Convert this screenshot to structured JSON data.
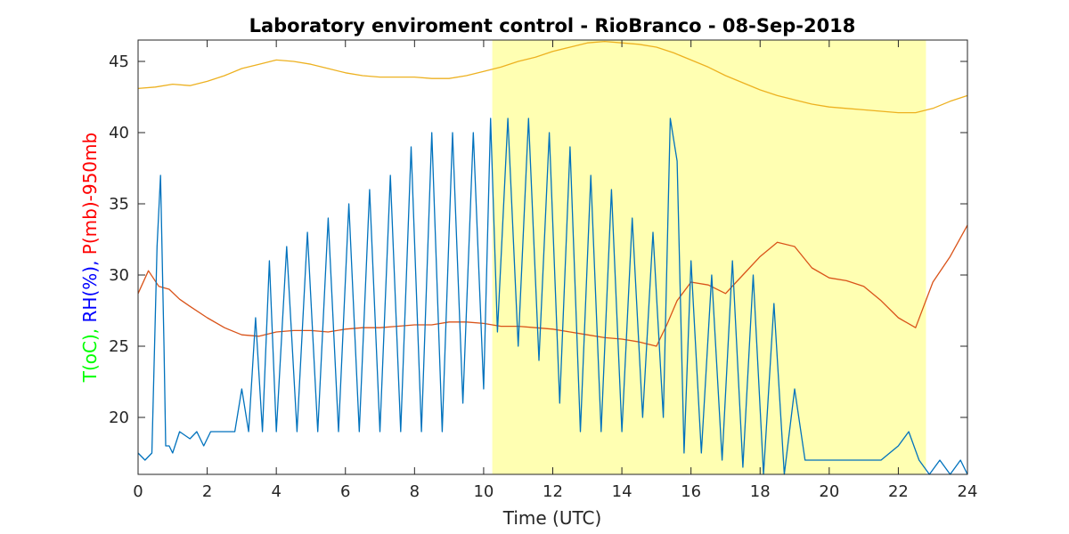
{
  "chart_data": {
    "type": "line",
    "title": "Laboratory enviroment control - RioBranco - 08-Sep-2018",
    "xlabel": "Time (UTC)",
    "ylabel_parts": [
      {
        "text": "T(oC), ",
        "color": "#00ff00"
      },
      {
        "text": "RH(%), ",
        "color": "#0000ff"
      },
      {
        "text": "P(mb)-950mb",
        "color": "#ff0000"
      }
    ],
    "xlim": [
      0,
      24
    ],
    "ylim": [
      16,
      46.5
    ],
    "x_ticks": [
      0,
      2,
      4,
      6,
      8,
      10,
      12,
      14,
      16,
      18,
      20,
      22,
      24
    ],
    "y_ticks": [
      20,
      25,
      30,
      35,
      40,
      45
    ],
    "shaded_region": {
      "x_start": 10.25,
      "x_end": 22.8,
      "color": "#ffffb2"
    },
    "series": [
      {
        "color": "#edb120",
        "x": [
          0,
          0.5,
          1,
          1.5,
          2,
          2.5,
          3,
          3.5,
          4,
          4.5,
          5,
          5.5,
          6,
          6.5,
          7,
          7.5,
          8,
          8.5,
          9,
          9.5,
          10,
          10.5,
          11,
          11.5,
          12,
          12.5,
          13,
          13.5,
          14,
          14.5,
          15,
          15.5,
          16,
          16.5,
          17,
          17.5,
          18,
          18.5,
          19,
          19.5,
          20,
          20.5,
          21,
          21.5,
          22,
          22.5,
          23,
          23.5,
          24
        ],
        "values": [
          43.1,
          43.2,
          43.4,
          43.3,
          43.6,
          44.0,
          44.5,
          44.8,
          45.1,
          45.0,
          44.8,
          44.5,
          44.2,
          44.0,
          43.9,
          43.9,
          43.9,
          43.8,
          43.8,
          44.0,
          44.3,
          44.6,
          45.0,
          45.3,
          45.7,
          46.0,
          46.3,
          46.4,
          46.3,
          46.2,
          46.0,
          45.6,
          45.1,
          44.6,
          44.0,
          43.5,
          43.0,
          42.6,
          42.3,
          42.0,
          41.8,
          41.7,
          41.6,
          41.5,
          41.4,
          41.4,
          41.7,
          42.2,
          42.6
        ]
      },
      {
        "color": "#d95319",
        "x": [
          0,
          0.3,
          0.6,
          0.9,
          1.2,
          1.5,
          2,
          2.5,
          3,
          3.5,
          4,
          4.5,
          5,
          5.5,
          6,
          6.5,
          7,
          7.5,
          8,
          8.5,
          9,
          9.5,
          10,
          10.5,
          11,
          11.5,
          12,
          12.5,
          13,
          13.5,
          14,
          14.5,
          15,
          15.3,
          15.6,
          16,
          16.5,
          17,
          17.5,
          18,
          18.5,
          19,
          19.5,
          20,
          20.5,
          21,
          21.5,
          22,
          22.5,
          23,
          23.5,
          24
        ],
        "values": [
          28.7,
          30.3,
          29.2,
          29.0,
          28.3,
          27.8,
          27.0,
          26.3,
          25.8,
          25.7,
          26.0,
          26.1,
          26.1,
          26.0,
          26.2,
          26.3,
          26.3,
          26.4,
          26.5,
          26.5,
          26.7,
          26.7,
          26.6,
          26.4,
          26.4,
          26.3,
          26.2,
          26.0,
          25.8,
          25.6,
          25.5,
          25.3,
          25.0,
          26.5,
          28.2,
          29.5,
          29.3,
          28.7,
          30.0,
          31.3,
          32.3,
          32.0,
          30.5,
          29.8,
          29.6,
          29.2,
          28.2,
          27.0,
          26.3,
          29.5,
          31.3,
          33.5
        ]
      },
      {
        "color": "#0072bd",
        "x": [
          0,
          0.2,
          0.4,
          0.55,
          0.65,
          0.75,
          0.8,
          0.9,
          1.0,
          1.2,
          1.5,
          1.7,
          1.9,
          2.1,
          2.4,
          2.8,
          3.0,
          3.2,
          3.4,
          3.6,
          3.8,
          4.0,
          4.3,
          4.6,
          4.9,
          5.2,
          5.5,
          5.8,
          6.1,
          6.4,
          6.7,
          7.0,
          7.3,
          7.6,
          7.9,
          8.2,
          8.5,
          8.8,
          9.1,
          9.4,
          9.7,
          10.0,
          10.2,
          10.4,
          10.7,
          11.0,
          11.3,
          11.6,
          11.9,
          12.2,
          12.5,
          12.8,
          13.1,
          13.4,
          13.7,
          14.0,
          14.3,
          14.6,
          14.9,
          15.2,
          15.4,
          15.6,
          15.8,
          16.0,
          16.3,
          16.6,
          16.9,
          17.2,
          17.5,
          17.8,
          18.1,
          18.4,
          18.7,
          19.0,
          19.3,
          19.6,
          20.0,
          20.5,
          21.0,
          21.5,
          22.0,
          22.3,
          22.6,
          22.9,
          23.2,
          23.5,
          23.8,
          24.0
        ],
        "values": [
          17.5,
          17.0,
          17.5,
          32.0,
          37.0,
          25.0,
          18.0,
          18.0,
          17.5,
          19.0,
          18.5,
          19.0,
          18.0,
          19.0,
          19.0,
          19.0,
          22.0,
          19.0,
          27.0,
          19.0,
          31.0,
          19.0,
          32.0,
          19.0,
          33.0,
          19.0,
          34.0,
          19.0,
          35.0,
          19.0,
          36.0,
          19.0,
          37.0,
          19.0,
          39.0,
          19.0,
          40.0,
          19.0,
          40.0,
          21.0,
          40.0,
          22.0,
          41.0,
          26.0,
          41.0,
          25.0,
          41.0,
          24.0,
          40.0,
          21.0,
          39.0,
          19.0,
          37.0,
          19.0,
          36.0,
          19.0,
          34.0,
          20.0,
          33.0,
          20.0,
          41.0,
          38.0,
          17.5,
          31.0,
          17.5,
          30.0,
          17.0,
          31.0,
          16.5,
          30.0,
          16.0,
          28.0,
          16.0,
          22.0,
          17.0,
          17.0,
          17.0,
          17.0,
          17.0,
          17.0,
          18.0,
          19.0,
          17.0,
          16.0,
          17.0,
          16.0,
          17.0,
          16.0
        ]
      }
    ]
  }
}
